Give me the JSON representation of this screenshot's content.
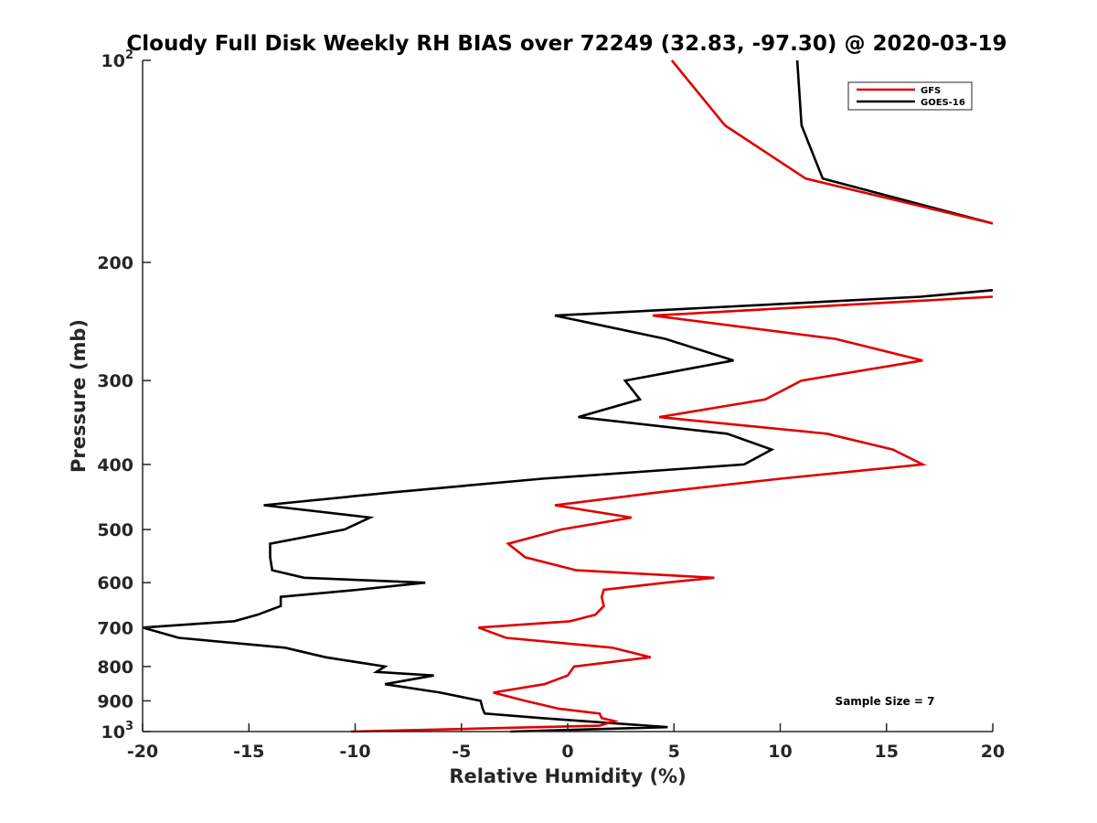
{
  "chart_data": {
    "type": "line",
    "title": "Cloudy Full Disk Weekly RH BIAS over 72249 (32.83, -97.30) @ 2020-03-19",
    "xlabel": "Relative Humidity (%)",
    "ylabel": "Pressure (mb)",
    "xlim": [
      -20,
      20
    ],
    "ylim": [
      100,
      1000
    ],
    "y_scale": "log",
    "y_reversed": true,
    "grid": false,
    "legend_position": "top-right",
    "x_ticks": [
      {
        "value": -20,
        "label": "-20"
      },
      {
        "value": -15,
        "label": "-15"
      },
      {
        "value": -10,
        "label": "-10"
      },
      {
        "value": -5,
        "label": "-5"
      },
      {
        "value": 0,
        "label": "0"
      },
      {
        "value": 5,
        "label": "5"
      },
      {
        "value": 10,
        "label": "10"
      },
      {
        "value": 15,
        "label": "15"
      },
      {
        "value": 20,
        "label": "20"
      }
    ],
    "y_ticks": [
      {
        "value": 100,
        "label": "10",
        "sup": "2"
      },
      {
        "value": 200,
        "label": "200"
      },
      {
        "value": 300,
        "label": "300"
      },
      {
        "value": 400,
        "label": "400"
      },
      {
        "value": 500,
        "label": "500"
      },
      {
        "value": 600,
        "label": "600"
      },
      {
        "value": 700,
        "label": "700"
      },
      {
        "value": 800,
        "label": "800"
      },
      {
        "value": 900,
        "label": "900"
      },
      {
        "value": 1000,
        "label": "10",
        "sup": "3"
      }
    ],
    "annotation": "Sample Size = 7",
    "series": [
      {
        "name": "GFS",
        "color": "#e00000",
        "segments": [
          {
            "x": [
              4.9,
              7.4,
              11.2,
              20.0
            ],
            "y": [
              100,
              125,
              150,
              175
            ]
          },
          {
            "x": [
              20.0,
              4.0,
              12.6,
              16.7,
              11.0,
              9.3,
              4.3,
              12.2,
              15.3,
              16.7,
              10.0,
              4.3,
              -0.6,
              3.0,
              -0.3,
              -2.8,
              -2.0,
              0.4,
              6.9,
              4.6,
              1.7,
              1.6,
              1.7,
              1.3,
              0.1,
              -4.2,
              -2.9,
              2.1,
              3.9,
              0.3,
              0.0,
              -1.1,
              -3.5,
              -2.0,
              -0.4,
              1.5,
              1.6,
              2.2,
              1.5,
              -10.2
            ],
            "y": [
              225,
              240,
              260,
              280,
              300,
              320,
              340,
              360,
              380,
              400,
              420,
              440,
              460,
              480,
              500,
              525,
              550,
              575,
              590,
              600,
              615,
              630,
              650,
              670,
              685,
              700,
              725,
              750,
              775,
              800,
              825,
              850,
              875,
              900,
              925,
              940,
              955,
              965,
              980,
              1000
            ]
          }
        ]
      },
      {
        "name": "GOES-16",
        "color": "#000000",
        "segments": [
          {
            "x": [
              10.8,
              11.0,
              12.0,
              20.0
            ],
            "y": [
              100,
              125,
              150,
              175
            ]
          },
          {
            "x": [
              20.0,
              16.6,
              -0.6,
              4.6,
              7.8,
              2.7,
              3.4,
              0.5,
              7.5,
              9.6,
              8.3,
              -1.2,
              -8.2,
              -14.3,
              -9.3,
              -10.5,
              -14.0,
              -14.0,
              -13.9,
              -12.4,
              -6.7,
              -9.9,
              -13.5,
              -13.5,
              -14.6,
              -15.7,
              -20.0,
              -18.3,
              -13.3,
              -11.4,
              -8.6,
              -9.0,
              -6.3,
              -8.6,
              -6.0,
              -4.1,
              -4.0,
              -3.9,
              -1.2,
              4.7,
              -2.7
            ],
            "y": [
              220,
              225,
              240,
              260,
              280,
              300,
              320,
              340,
              360,
              380,
              400,
              420,
              440,
              460,
              480,
              500,
              525,
              550,
              575,
              590,
              600,
              615,
              630,
              650,
              670,
              685,
              700,
              725,
              750,
              775,
              800,
              815,
              825,
              850,
              875,
              900,
              925,
              940,
              955,
              985,
              1000
            ]
          }
        ]
      }
    ]
  }
}
